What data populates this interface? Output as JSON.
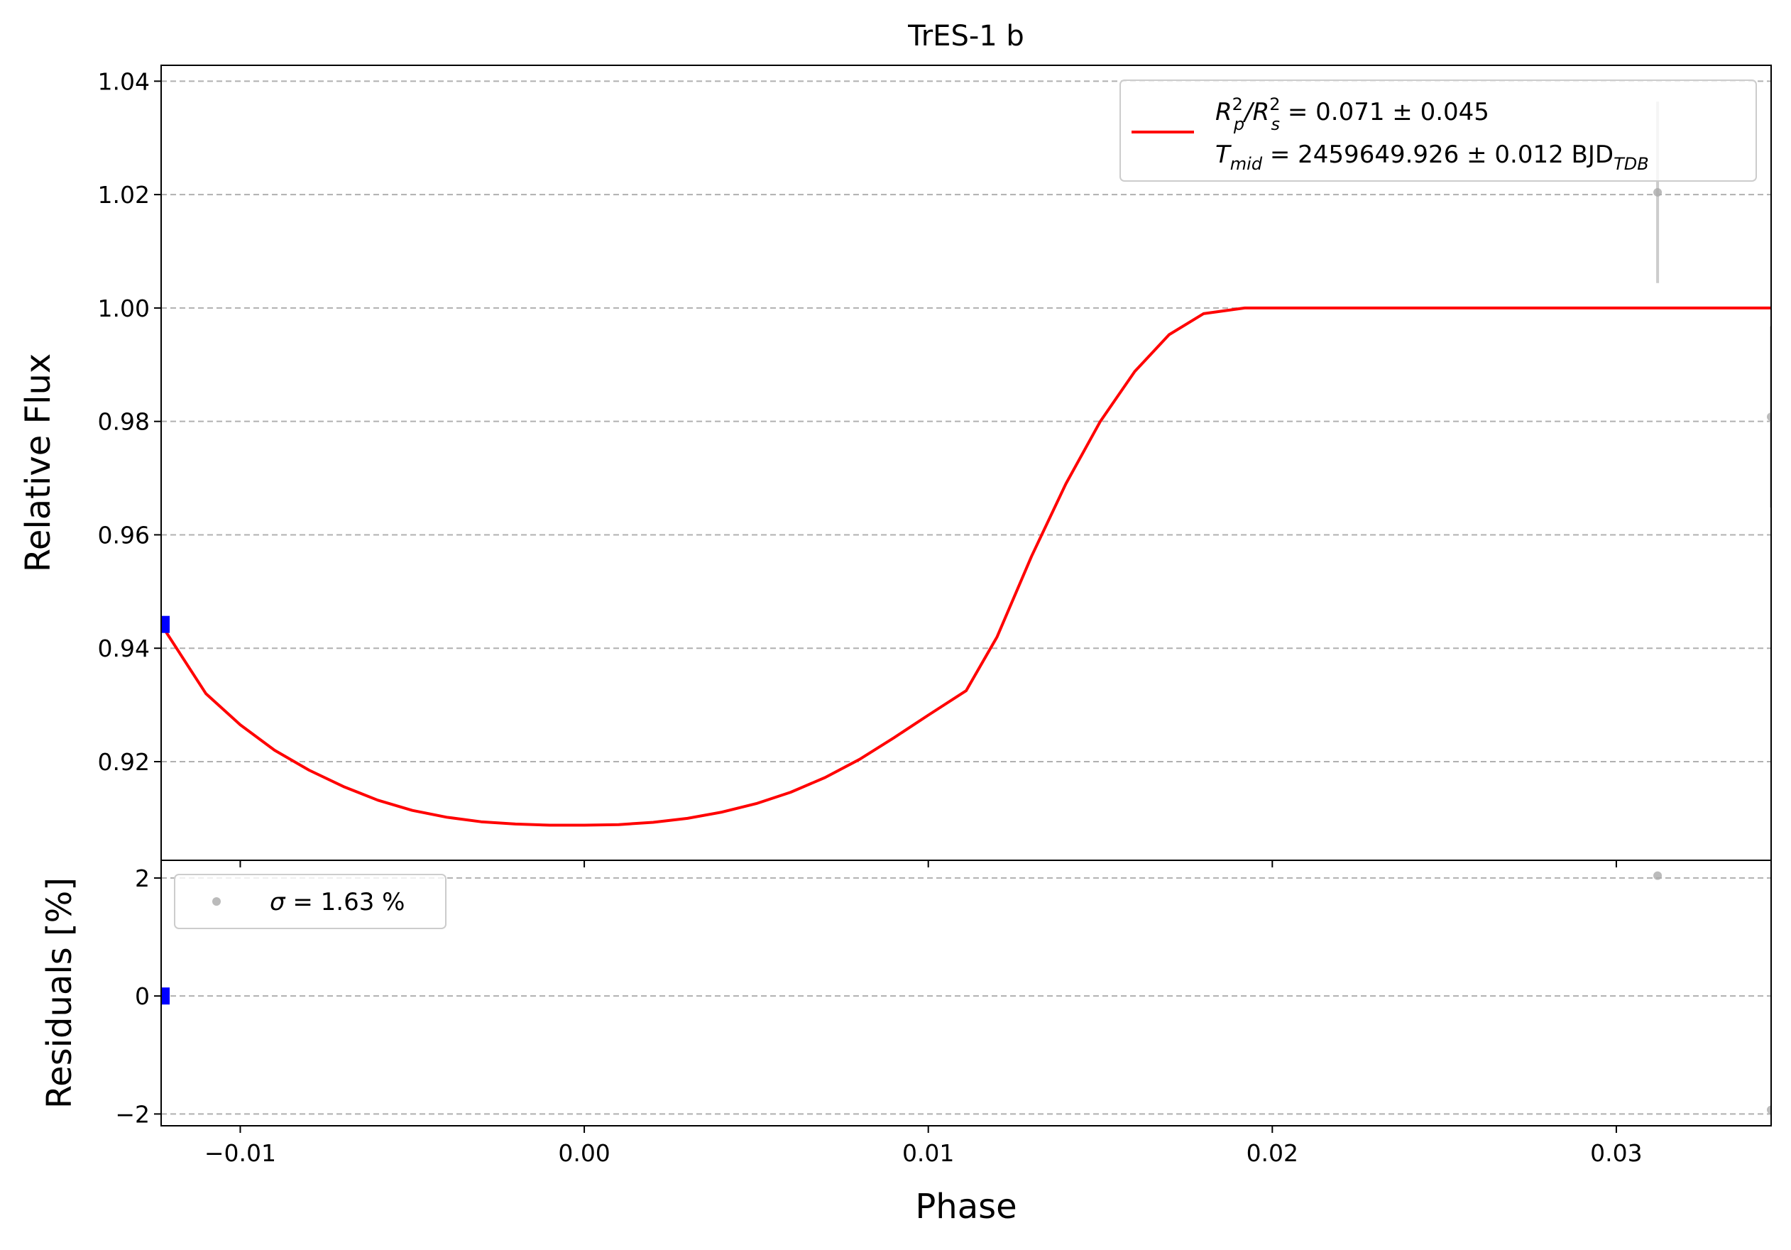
{
  "chart_data": [
    {
      "panel": "main",
      "type": "line",
      "title": "TrES-1 b",
      "xlabel": "",
      "ylabel": "Relative Flux",
      "xlim": [
        -0.0123,
        0.0345
      ],
      "ylim": [
        0.9026,
        1.0428
      ],
      "x_ticks": [
        -0.01,
        0.0,
        0.01,
        0.02,
        0.03
      ],
      "x_tick_labels": [
        "−0.01",
        "0.00",
        "0.01",
        "0.02",
        "0.03"
      ],
      "y_ticks": [
        0.92,
        0.94,
        0.96,
        0.98,
        1.0,
        1.02,
        1.04
      ],
      "y_tick_labels": [
        "0.92",
        "0.94",
        "0.96",
        "0.98",
        "1.00",
        "1.02",
        "1.04"
      ],
      "grid": "horizontal dashed",
      "series": [
        {
          "kind": "model",
          "color": "#ff0000",
          "x": [
            -0.0123,
            -0.011,
            -0.01,
            -0.009,
            -0.008,
            -0.007,
            -0.006,
            -0.005,
            -0.004,
            -0.003,
            -0.002,
            -0.001,
            0.0,
            0.001,
            0.002,
            0.003,
            0.004,
            0.005,
            0.006,
            0.007,
            0.008,
            0.009,
            0.01,
            0.0111,
            0.012,
            0.013,
            0.014,
            0.015,
            0.016,
            0.017,
            0.018,
            0.0192,
            0.025,
            0.03,
            0.0345
          ],
          "y": [
            0.9442,
            0.932,
            0.9265,
            0.922,
            0.9185,
            0.9156,
            0.9132,
            0.9114,
            0.9102,
            0.9094,
            0.909,
            0.9088,
            0.9088,
            0.9089,
            0.9093,
            0.91,
            0.9111,
            0.9126,
            0.9146,
            0.9172,
            0.9204,
            0.9242,
            0.9282,
            0.9325,
            0.942,
            0.9562,
            0.969,
            0.98,
            0.9888,
            0.9953,
            0.999,
            1.0,
            1.0,
            1.0,
            1.0
          ]
        },
        {
          "kind": "data",
          "color": "#aaaaaa",
          "x": [
            0.0312,
            0.0345
          ],
          "y": [
            1.0204,
            0.9808
          ],
          "yerr": [
            0.016,
            0.016
          ]
        },
        {
          "kind": "data-binned",
          "color": "#0000ff",
          "x": [
            -0.0123
          ],
          "y": [
            0.9442
          ]
        }
      ],
      "legend": {
        "placement": "top-right",
        "line1": {
          "main": "R",
          "sup1": "2",
          "sub1": "p",
          "mid": "/R",
          "sup2": "2",
          "sub2": "s",
          "tail": " = 0.071 ± 0.045"
        },
        "line2": {
          "main": "T",
          "sub1": "mid",
          "tail": " = 2459649.926 ± 0.012 BJD",
          "sub2": "TDB"
        }
      }
    },
    {
      "panel": "residuals",
      "type": "scatter",
      "xlabel": "Phase",
      "ylabel": "Residuals [%]",
      "xlim": [
        -0.0123,
        0.0345
      ],
      "ylim": [
        -2.2,
        2.3
      ],
      "y_ticks": [
        -2,
        0,
        2
      ],
      "y_tick_labels": [
        "−2",
        "0",
        "2"
      ],
      "grid": "horizontal dashed",
      "series": [
        {
          "kind": "residuals",
          "color": "#aaaaaa",
          "x": [
            0.0312,
            0.0345
          ],
          "y": [
            2.04,
            -1.93
          ]
        },
        {
          "kind": "residuals-binned",
          "color": "#0000ff",
          "x": [
            -0.0123
          ],
          "y": [
            0.0
          ]
        }
      ],
      "legend": {
        "placement": "top-left",
        "symbol": "σ",
        "tail": " = 1.63 %"
      }
    }
  ]
}
